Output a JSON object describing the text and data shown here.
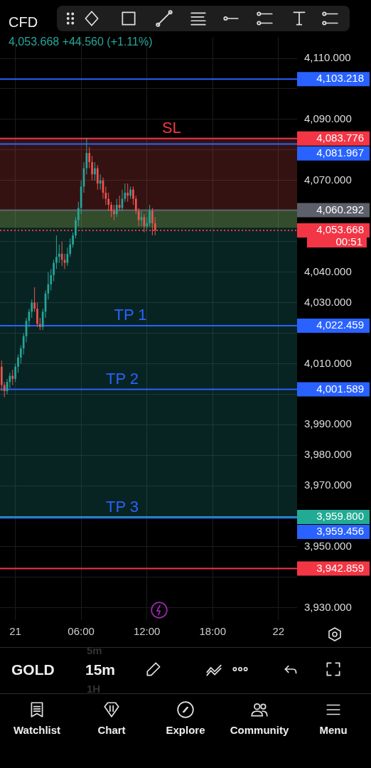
{
  "chart_data": {
    "type": "candlestick",
    "title": "CFD",
    "subtitle": "4,053.668 +44.560 (+1.11%)",
    "x": [
      "--11-20T22:45",
      "--11-20T23:00",
      "--11-20T23:15",
      "--11-20T23:30",
      "--11-20T23:45",
      "--11-21T00:00",
      "--11-21T00:15",
      "--11-21T00:30",
      "--11-21T00:45",
      "--11-21T01:00",
      "--11-21T01:15",
      "--11-21T01:30",
      "--11-21T01:45",
      "--11-21T02:00",
      "--11-21T02:15",
      "--11-21T02:30",
      "--11-21T02:45",
      "--11-21T03:00",
      "--11-21T03:15",
      "--11-21T03:30",
      "--11-21T03:45",
      "--11-21T04:00",
      "--11-21T04:15",
      "--11-21T04:30",
      "--11-21T04:45",
      "--11-21T05:00",
      "--11-21T05:15",
      "--11-21T05:30",
      "--11-21T05:45",
      "--11-21T06:00",
      "--11-21T06:15",
      "--11-21T06:30",
      "--11-21T06:45",
      "--11-21T07:00",
      "--11-21T07:15",
      "--11-21T07:30",
      "--11-21T07:45",
      "--11-21T08:00",
      "--11-21T08:15",
      "--11-21T08:30",
      "--11-21T08:45",
      "--11-21T09:00",
      "--11-21T09:15",
      "--11-21T09:30",
      "--11-21T09:45",
      "--11-21T10:00",
      "--11-21T10:15",
      "--11-21T10:30",
      "--11-21T10:45",
      "--11-21T11:00",
      "--11-21T11:15",
      "--11-21T11:30",
      "--11-21T11:45",
      "--11-21T12:00",
      "--11-21T12:15",
      "--11-21T12:30",
      "--11-21T12:45"
    ],
    "ohlc": [
      [
        4009,
        4011,
        4001,
        4003
      ],
      [
        4003,
        4004,
        3999,
        4001
      ],
      [
        4001,
        4005,
        4000,
        4004
      ],
      [
        4004,
        4007,
        4002,
        4006
      ],
      [
        4006,
        4008,
        4003,
        4005
      ],
      [
        4005,
        4010,
        4004,
        4009
      ],
      [
        4009,
        4013,
        4007,
        4012
      ],
      [
        4012,
        4016,
        4010,
        4015
      ],
      [
        4015,
        4020,
        4013,
        4019
      ],
      [
        4019,
        4025,
        4017,
        4024
      ],
      [
        4024,
        4028,
        4022,
        4027
      ],
      [
        4027,
        4031,
        4025,
        4030
      ],
      [
        4030,
        4035,
        4027,
        4028
      ],
      [
        4028,
        4030,
        4022,
        4023
      ],
      [
        4023,
        4025,
        4021,
        4022
      ],
      [
        4022,
        4028,
        4021,
        4027
      ],
      [
        4027,
        4034,
        4025,
        4033
      ],
      [
        4033,
        4040,
        4031,
        4036
      ],
      [
        4036,
        4041,
        4034,
        4039
      ],
      [
        4039,
        4044,
        4037,
        4043
      ],
      [
        4043,
        4052,
        4041,
        4045
      ],
      [
        4045,
        4049,
        4043,
        4046
      ],
      [
        4046,
        4050,
        4042,
        4044
      ],
      [
        4044,
        4046,
        4041,
        4043
      ],
      [
        4043,
        4048,
        4042,
        4046
      ],
      [
        4046,
        4051,
        4045,
        4049
      ],
      [
        4049,
        4053,
        4048,
        4052
      ],
      [
        4052,
        4058,
        4051,
        4057
      ],
      [
        4057,
        4063,
        4055,
        4061
      ],
      [
        4061,
        4070,
        4059,
        4068
      ],
      [
        4068,
        4076,
        4066,
        4074
      ],
      [
        4074,
        4084,
        4072,
        4079
      ],
      [
        4079,
        4081,
        4074,
        4076
      ],
      [
        4076,
        4078,
        4070,
        4072
      ],
      [
        4072,
        4076,
        4070,
        4074
      ],
      [
        4074,
        4075,
        4067,
        4069
      ],
      [
        4069,
        4072,
        4067,
        4070
      ],
      [
        4070,
        4071,
        4064,
        4066
      ],
      [
        4066,
        4068,
        4062,
        4064
      ],
      [
        4064,
        4066,
        4060,
        4062
      ],
      [
        4062,
        4063,
        4058,
        4060
      ],
      [
        4060,
        4062,
        4057,
        4059
      ],
      [
        4059,
        4064,
        4058,
        4062
      ],
      [
        4062,
        4065,
        4060,
        4061
      ],
      [
        4061,
        4067,
        4060,
        4064
      ],
      [
        4064,
        4069,
        4063,
        4066
      ],
      [
        4066,
        4069,
        4063,
        4065
      ],
      [
        4065,
        4068,
        4064,
        4067
      ],
      [
        4067,
        4068,
        4062,
        4064
      ],
      [
        4064,
        4065,
        4059,
        4060
      ],
      [
        4060,
        4061,
        4055,
        4057
      ],
      [
        4057,
        4060,
        4055,
        4058
      ],
      [
        4058,
        4059,
        4053,
        4055
      ],
      [
        4055,
        4058,
        4054,
        4056
      ],
      [
        4056,
        4062,
        4055,
        4060
      ],
      [
        4060,
        4061,
        4052,
        4056
      ],
      [
        4056,
        4058,
        4052,
        4053.668
      ]
    ],
    "colors": [
      "#ef5350",
      "#ef5350",
      "#26a69a",
      "#26a69a",
      "#ef5350",
      "#26a69a",
      "#26a69a",
      "#26a69a",
      "#26a69a",
      "#26a69a",
      "#26a69a",
      "#26a69a",
      "#ef5350",
      "#ef5350",
      "#ef5350",
      "#26a69a",
      "#26a69a",
      "#26a69a",
      "#26a69a",
      "#26a69a",
      "#26a69a",
      "#26a69a",
      "#ef5350",
      "#ef5350",
      "#26a69a",
      "#26a69a",
      "#26a69a",
      "#26a69a",
      "#26a69a",
      "#26a69a",
      "#26a69a",
      "#26a69a",
      "#ef5350",
      "#ef5350",
      "#26a69a",
      "#ef5350",
      "#26a69a",
      "#ef5350",
      "#ef5350",
      "#ef5350",
      "#ef5350",
      "#ef5350",
      "#26a69a",
      "#ef5350",
      "#26a69a",
      "#26a69a",
      "#ef5350",
      "#26a69a",
      "#ef5350",
      "#ef5350",
      "#ef5350",
      "#26a69a",
      "#ef5350",
      "#26a69a",
      "#26a69a",
      "#ef5350",
      "#ef5350"
    ],
    "xlim": [
      "--11-20T22:36",
      "--11-22T01:42"
    ],
    "xticks": [
      {
        "value": "--11-21",
        "label": "21"
      },
      {
        "value": "--11-21T06:00",
        "label": "06:00"
      },
      {
        "value": "--11-21T12:00",
        "label": "12:00"
      },
      {
        "value": "--11-21T18:00",
        "label": "18:00"
      },
      {
        "value": "--11-22",
        "label": "22"
      }
    ],
    "ylim": [
      3926,
      4117
    ],
    "yticks": [
      {
        "value": 4110,
        "label": "4,110.000"
      },
      {
        "value": 4100,
        "label": null
      },
      {
        "value": 4090,
        "label": "4,090.000"
      },
      {
        "value": 4080,
        "label": null
      },
      {
        "value": 4070,
        "label": "4,070.000"
      },
      {
        "value": 4060,
        "label": null
      },
      {
        "value": 4050,
        "label": null
      },
      {
        "value": 4040,
        "label": "4,040.000"
      },
      {
        "value": 4030,
        "label": "4,030.000"
      },
      {
        "value": 4020,
        "label": null
      },
      {
        "value": 4010,
        "label": "4,010.000"
      },
      {
        "value": 4000,
        "label": null
      },
      {
        "value": 3990,
        "label": "3,990.000"
      },
      {
        "value": 3980,
        "label": "3,980.000"
      },
      {
        "value": 3970,
        "label": "3,970.000"
      },
      {
        "value": 3960,
        "label": null
      },
      {
        "value": 3950,
        "label": "3,950.000"
      },
      {
        "value": 3940,
        "label": null
      },
      {
        "value": 3930,
        "label": "3,930.000"
      }
    ],
    "grid": true,
    "bands": [
      {
        "axis": "y",
        "from": 4054.5,
        "to": 4060.292,
        "color": "#ffeb3b"
      },
      {
        "axis": "y",
        "from": 4060.292,
        "to": 4083.776,
        "color": "#ef5350"
      },
      {
        "axis": "y",
        "from": 3959.8,
        "to": 4060.292,
        "color": "#26a69a"
      }
    ],
    "ref_lines": [
      {
        "axis": "y",
        "value": 4103.218,
        "color": "#2962ff",
        "label": "4,103.218"
      },
      {
        "axis": "y",
        "value": 4083.776,
        "color": "#f23645",
        "label": "4,083.776"
      },
      {
        "axis": "y",
        "value": 4081.967,
        "color": "#2962ff",
        "label": "4,081.967"
      },
      {
        "axis": "y",
        "value": 4060.292,
        "color": "#5d606b",
        "label": "4,060.292"
      },
      {
        "axis": "y",
        "value": 4053.668,
        "color": "#f23645",
        "line_style": "dotted",
        "label": "4,053.668"
      },
      {
        "axis": "y",
        "value": 4022.459,
        "color": "#2962ff",
        "label": "4,022.459"
      },
      {
        "axis": "y",
        "value": 4001.589,
        "color": "#2962ff",
        "label": "4,001.589"
      },
      {
        "axis": "y",
        "value": 3959.8,
        "color": "#22ab94",
        "label": "3,959.800"
      },
      {
        "axis": "y",
        "value": 3959.456,
        "color": "#2962ff",
        "label": "3,959.456"
      },
      {
        "axis": "y",
        "value": 3942.859,
        "color": "#f23645",
        "label": "3,942.859"
      }
    ],
    "annotations": [
      "00:51",
      "GOLD",
      "15m",
      "5m",
      "1H",
      "Watchlist",
      "Chart",
      "Explore",
      "Community",
      "Menu",
      {
        "text": "SL",
        "x": "--11-21T14:15",
        "y": 4083.776
      },
      {
        "text": "TP 1",
        "x": "--11-21T10:30",
        "y": 4022.459
      },
      {
        "text": "TP 2",
        "x": "--11-21T09:45",
        "y": 4001.589
      },
      {
        "text": "TP 3",
        "x": "--11-21T09:45",
        "y": 3959.456
      }
    ]
  }
}
